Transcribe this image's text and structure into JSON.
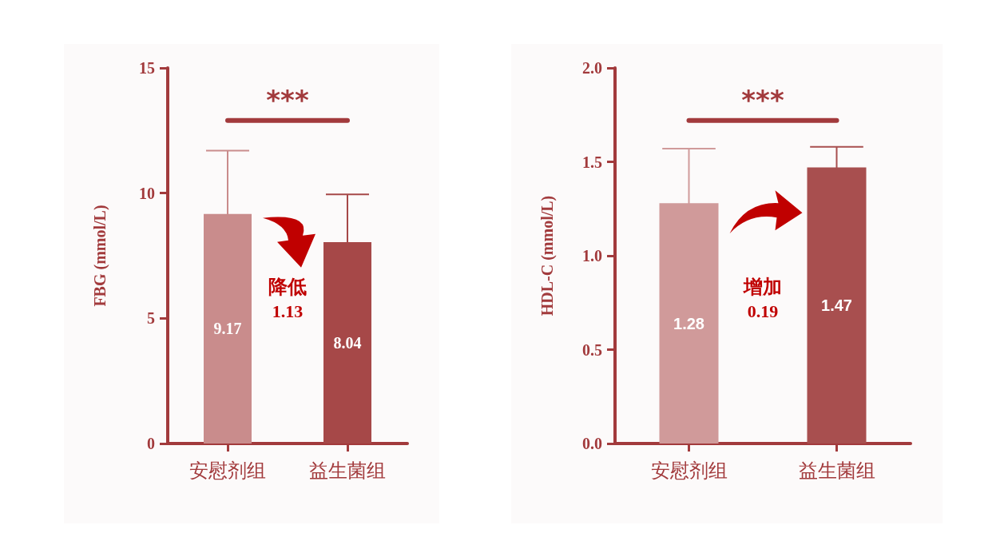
{
  "chart_data": [
    {
      "type": "bar",
      "ylabel": "FBG (mmol/L)",
      "categories": [
        "安慰剂组",
        "益生菌组"
      ],
      "values": [
        9.17,
        8.04
      ],
      "colors": [
        "#c98c8c",
        "#a64848"
      ],
      "errors": [
        2.53,
        1.91
      ],
      "ylim": [
        0,
        15
      ],
      "yticks": [
        0,
        5,
        10,
        15
      ],
      "grid": false,
      "data_labels": true,
      "annotations": [
        "***",
        "降低",
        "1.13"
      ]
    },
    {
      "type": "bar",
      "ylabel": "HDL-C (mmol/L)",
      "categories": [
        "安慰剂组",
        "益生菌组"
      ],
      "values": [
        1.28,
        1.47
      ],
      "colors": [
        "#d09a9a",
        "#a84f4f"
      ],
      "errors": [
        0.29,
        0.11
      ],
      "ylim": [
        0,
        2
      ],
      "yticks": [
        {
          "value": 0,
          "label": "0.0"
        },
        {
          "value": 0.5,
          "label": "0.5"
        },
        {
          "value": 1,
          "label": "1.0"
        },
        {
          "value": 1.5,
          "label": "1.5"
        },
        {
          "value": 2,
          "label": "2.0"
        }
      ],
      "grid": false,
      "data_labels": true,
      "annotations": [
        "***",
        "增加",
        "0.19"
      ]
    }
  ]
}
